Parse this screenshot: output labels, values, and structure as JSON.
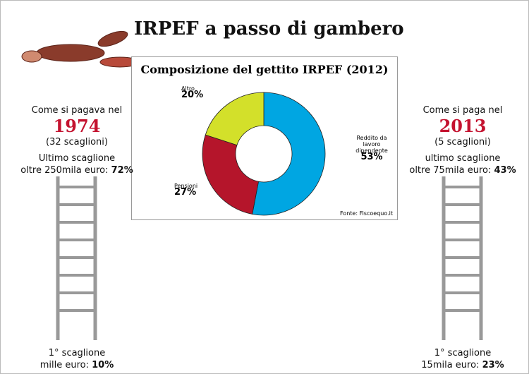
{
  "title": "IRPEF a passo di gambero",
  "chart_data": {
    "type": "donut",
    "title": "Composizione del gettito IRPEF (2012)",
    "categories": [
      "Reddito da lavoro dipendente",
      "Pensioni",
      "Altro"
    ],
    "values": [
      53,
      27,
      20
    ],
    "value_labels": [
      "53%",
      "27%",
      "20%"
    ],
    "colors": [
      "#00a6e2",
      "#b5152b",
      "#d3e02a"
    ],
    "source": "Fonte: Fiscoequo.it"
  },
  "then": {
    "intro": "Come si pagava nel",
    "year": "1974",
    "brackets": "(32 scaglioni)",
    "last_label": "Ultimo scaglione",
    "last_amount": "oltre 250mila euro:",
    "last_rate": "72%",
    "first_label": "1° scaglione",
    "first_amount": "mille euro:",
    "first_rate": "10%"
  },
  "now": {
    "intro": "Come si paga nel",
    "year": "2013",
    "brackets": "(5 scaglioni)",
    "last_label": "ultimo scaglione",
    "last_amount": "oltre 75mila euro:",
    "last_rate": "43%",
    "first_label": "1° scaglione",
    "first_amount": "15mila euro:",
    "first_rate": "23%"
  }
}
